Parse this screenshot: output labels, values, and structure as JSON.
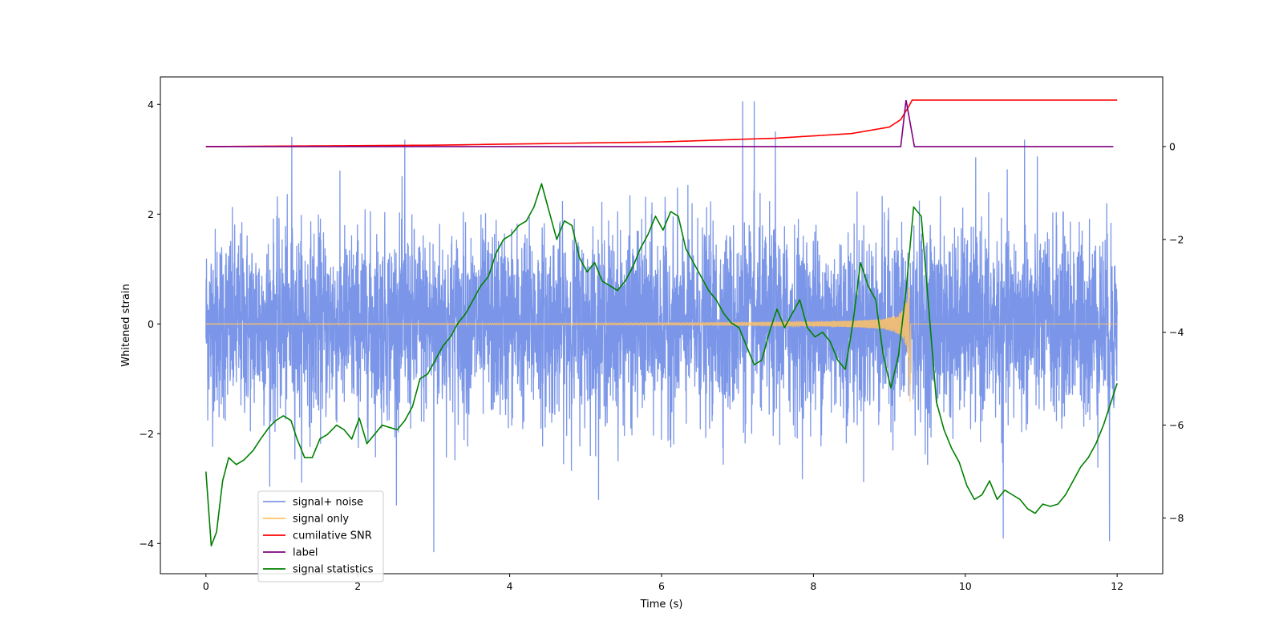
{
  "chart_data": {
    "type": "line",
    "xlabel": "Time (s)",
    "ylabel": "Whitened strain",
    "xlim": [
      -0.6,
      12.6
    ],
    "ylim_left": [
      -4.55,
      4.5
    ],
    "ylim_right": [
      -9.2,
      1.5
    ],
    "x_ticks": [
      0,
      2,
      4,
      6,
      8,
      10,
      12
    ],
    "x_tick_labels": [
      "0",
      "2",
      "4",
      "6",
      "8",
      "10",
      "12"
    ],
    "y_ticks_left": [
      -4,
      -2,
      0,
      2,
      4
    ],
    "y_tick_labels_left": [
      "−4",
      "−2",
      "0",
      "2",
      "4"
    ],
    "y_ticks_right": [
      -8,
      -6,
      -4,
      -2,
      0
    ],
    "y_tick_labels_right": [
      "−8",
      "−6",
      "−4",
      "−2",
      "0"
    ],
    "legend_position": "lower-left",
    "series": [
      {
        "name": "signal+ noise",
        "color": "#7b96e8",
        "axis": "left",
        "x_range": [
          0,
          12
        ],
        "noise_amplitude": 0.85,
        "spike_values": [
          [
            1.13,
            3.4
          ],
          [
            2.62,
            3.35
          ],
          [
            3.0,
            -4.15
          ],
          [
            7.07,
            4.05
          ],
          [
            7.22,
            4.05
          ],
          [
            7.5,
            3.5
          ],
          [
            10.5,
            -3.9
          ],
          [
            10.78,
            3.35
          ],
          [
            11.9,
            -3.95
          ]
        ]
      },
      {
        "name": "signal only",
        "color": "#ffc266",
        "axis": "left",
        "x_range": [
          0,
          9.3
        ],
        "chirp_peak": [
          9.28,
          1.6
        ]
      },
      {
        "name": "cumilative SNR",
        "color": "#ff0000",
        "axis": "right",
        "x": [
          0,
          3,
          6,
          7.5,
          8.5,
          9.0,
          9.15,
          9.25,
          9.3,
          12
        ],
        "y": [
          0,
          0.03,
          0.1,
          0.18,
          0.28,
          0.42,
          0.58,
          0.85,
          1.0,
          1.0
        ]
      },
      {
        "name": "label",
        "color": "#800080",
        "axis": "right",
        "x": [
          0,
          9.15,
          9.22,
          9.33,
          11.95
        ],
        "y": [
          0,
          0,
          1.0,
          0,
          0
        ]
      },
      {
        "name": "signal statistics",
        "color": "#008000",
        "axis": "right",
        "x": [
          0,
          0.07,
          0.14,
          0.22,
          0.3,
          0.4,
          0.5,
          0.62,
          0.72,
          0.83,
          0.92,
          1.02,
          1.12,
          1.2,
          1.3,
          1.4,
          1.5,
          1.6,
          1.72,
          1.82,
          1.92,
          2.02,
          2.12,
          2.22,
          2.32,
          2.42,
          2.52,
          2.62,
          2.72,
          2.82,
          2.92,
          3.02,
          3.12,
          3.22,
          3.32,
          3.42,
          3.52,
          3.62,
          3.72,
          3.82,
          3.92,
          4.02,
          4.12,
          4.22,
          4.32,
          4.42,
          4.52,
          4.62,
          4.72,
          4.82,
          4.92,
          5.02,
          5.12,
          5.22,
          5.32,
          5.42,
          5.52,
          5.62,
          5.72,
          5.82,
          5.92,
          6.02,
          6.12,
          6.22,
          6.32,
          6.42,
          6.52,
          6.62,
          6.72,
          6.82,
          6.92,
          7.02,
          7.12,
          7.22,
          7.32,
          7.42,
          7.52,
          7.62,
          7.72,
          7.82,
          7.92,
          8.02,
          8.12,
          8.22,
          8.32,
          8.42,
          8.52,
          8.62,
          8.72,
          8.82,
          8.92,
          9.02,
          9.12,
          9.22,
          9.32,
          9.42,
          9.52,
          9.62,
          9.72,
          9.82,
          9.92,
          10.02,
          10.12,
          10.22,
          10.32,
          10.42,
          10.52,
          10.62,
          10.72,
          10.82,
          10.92,
          11.02,
          11.12,
          11.22,
          11.32,
          11.42,
          11.52,
          11.62,
          11.72,
          11.82,
          11.92,
          12.0
        ],
        "y": [
          -7.0,
          -8.6,
          -8.3,
          -7.2,
          -6.7,
          -6.85,
          -6.75,
          -6.55,
          -6.3,
          -6.05,
          -5.9,
          -5.8,
          -5.9,
          -6.3,
          -6.7,
          -6.7,
          -6.3,
          -6.2,
          -6.0,
          -6.1,
          -6.3,
          -5.85,
          -6.4,
          -6.2,
          -6.0,
          -6.05,
          -6.1,
          -5.9,
          -5.6,
          -5.0,
          -4.9,
          -4.6,
          -4.3,
          -4.1,
          -3.8,
          -3.6,
          -3.3,
          -3.0,
          -2.8,
          -2.3,
          -2.0,
          -1.9,
          -1.7,
          -1.6,
          -1.3,
          -0.8,
          -1.4,
          -2.0,
          -1.6,
          -1.7,
          -2.4,
          -2.7,
          -2.5,
          -2.9,
          -3.0,
          -3.1,
          -2.9,
          -2.6,
          -2.2,
          -1.9,
          -1.5,
          -1.8,
          -1.4,
          -1.5,
          -2.2,
          -2.5,
          -2.8,
          -3.1,
          -3.3,
          -3.6,
          -3.8,
          -3.9,
          -4.3,
          -4.7,
          -4.6,
          -4.0,
          -3.5,
          -3.9,
          -3.6,
          -3.3,
          -3.9,
          -4.1,
          -4.0,
          -4.2,
          -4.6,
          -4.8,
          -3.8,
          -2.5,
          -3.0,
          -3.3,
          -4.5,
          -5.2,
          -4.5,
          -3.1,
          -1.3,
          -1.5,
          -3.5,
          -5.5,
          -6.1,
          -6.5,
          -6.8,
          -7.3,
          -7.6,
          -7.5,
          -7.2,
          -7.6,
          -7.4,
          -7.5,
          -7.6,
          -7.8,
          -7.9,
          -7.7,
          -7.75,
          -7.7,
          -7.5,
          -7.2,
          -6.9,
          -6.7,
          -6.4,
          -6.0,
          -5.5,
          -5.1
        ]
      }
    ]
  }
}
